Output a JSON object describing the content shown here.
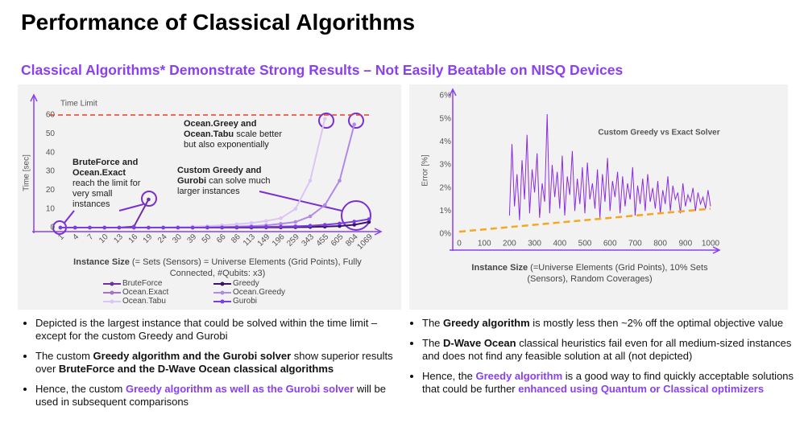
{
  "title": "Performance of Classical Algorithms",
  "subtitle": "Classical Algorithms* Demonstrate Strong Results – Not Easily Beatable on NISQ Devices",
  "chart_data": [
    {
      "type": "line",
      "ylabel": "Time [sec]",
      "xlabel": [
        {
          "text": "Instance Size",
          "style": "bold"
        },
        {
          "text": " (= Sets (Sensors) = Universe Elements (Grid Points), Fully Connected, #Qubits: x3)"
        }
      ],
      "categories": [
        1,
        4,
        7,
        10,
        13,
        16,
        19,
        24,
        30,
        39,
        50,
        66,
        86,
        113,
        149,
        196,
        259,
        343,
        455,
        605,
        804,
        1069
      ],
      "series": [
        {
          "name": "BruteForce",
          "color": "#6f2da8",
          "values": [
            0,
            0,
            0,
            0,
            0,
            0.5,
            15,
            null,
            null,
            null,
            null,
            null,
            null,
            null,
            null,
            null,
            null,
            null,
            null,
            null,
            null,
            null
          ]
        },
        {
          "name": "Greedy",
          "color": "#3b1466",
          "values": [
            0,
            0,
            0,
            0,
            0,
            0,
            0,
            0,
            0,
            0,
            0,
            0,
            0,
            0,
            0.1,
            0.1,
            0.2,
            0.3,
            0.5,
            0.8,
            1.5,
            3
          ]
        },
        {
          "name": "Ocean.Exact",
          "color": "#a46fcf",
          "values": [
            0,
            0,
            null,
            null,
            null,
            null,
            null,
            null,
            null,
            null,
            null,
            null,
            null,
            null,
            null,
            null,
            null,
            null,
            null,
            null,
            null,
            null
          ]
        },
        {
          "name": "Ocean.Greedy",
          "color": "#b18ae6",
          "values": [
            0,
            0,
            0,
            0,
            0,
            0,
            0,
            0,
            0,
            0.1,
            0.2,
            0.3,
            0.5,
            0.8,
            1.2,
            2,
            3,
            6,
            12,
            25,
            55,
            null
          ]
        },
        {
          "name": "Ocean.Tabu",
          "color": "#dcc4f5",
          "values": [
            0,
            0,
            0,
            0,
            0,
            0,
            0.1,
            0.2,
            0.3,
            0.5,
            0.8,
            1.2,
            1.8,
            2.5,
            3.5,
            5,
            10,
            25,
            58,
            null,
            null,
            null
          ]
        },
        {
          "name": "Gurobi",
          "color": "#7a3fe0",
          "values": [
            0,
            0,
            0,
            0,
            0,
            0,
            0,
            0,
            0,
            0,
            0.1,
            0.1,
            0.2,
            0.3,
            0.4,
            0.5,
            0.7,
            1,
            1.5,
            2.2,
            3.2,
            4.5
          ]
        }
      ],
      "ylim": [
        0,
        70
      ],
      "yticks": [
        0,
        10,
        20,
        30,
        40,
        50,
        60
      ],
      "limit": {
        "value": 60,
        "label": "Time Limit",
        "color": "#e8402a"
      },
      "annotations": [
        [
          {
            "text": "BruteForce and Ocean.Exact",
            "style": "bold"
          },
          {
            "text": " reach the limit for very small instances"
          }
        ],
        [
          {
            "text": "Ocean.Greey and Ocean.Tabu",
            "style": "bold"
          },
          {
            "text": " scale better but also exponentially"
          }
        ],
        [
          {
            "text": "Custom Greedy and Gurobi",
            "style": "bold"
          },
          {
            "text": " can solve much larger instances"
          }
        ]
      ],
      "legend": "bottom"
    },
    {
      "type": "line",
      "title": "Custom Greedy vs Exact Solver",
      "ylabel": "Error [%]",
      "xlabel": [
        {
          "text": "Instance Size",
          "style": "bold"
        },
        {
          "text": " (=Universe Elements (Grid Points), 10% Sets (Sensors), Random Coverages)"
        }
      ],
      "x": [
        200,
        210,
        220,
        230,
        240,
        250,
        260,
        270,
        280,
        290,
        300,
        310,
        320,
        330,
        340,
        350,
        360,
        370,
        380,
        390,
        400,
        410,
        420,
        430,
        440,
        450,
        460,
        470,
        480,
        490,
        500,
        510,
        520,
        530,
        540,
        550,
        560,
        570,
        580,
        590,
        600,
        610,
        620,
        630,
        640,
        650,
        660,
        670,
        680,
        690,
        700,
        710,
        720,
        730,
        740,
        750,
        760,
        770,
        780,
        790,
        800,
        810,
        820,
        830,
        840,
        850,
        860,
        870,
        880,
        890,
        900,
        910,
        920,
        930,
        940,
        950,
        960,
        970,
        980,
        990,
        1000
      ],
      "series": [
        {
          "color": "#8a2be2",
          "values": [
            0.8,
            3.9,
            1.2,
            2.6,
            0.6,
            3.2,
            1.5,
            4.3,
            0.9,
            2.8,
            1.8,
            3.5,
            0.7,
            2.2,
            1.4,
            5.2,
            0.9,
            3.0,
            1.6,
            2.7,
            1.1,
            3.4,
            0.8,
            2.5,
            1.7,
            3.6,
            1.0,
            2.4,
            1.3,
            2.9,
            0.9,
            3.1,
            1.5,
            2.2,
            1.1,
            2.8,
            0.7,
            2.6,
            1.4,
            3.3,
            1.0,
            2.3,
            1.6,
            2.7,
            0.9,
            2.5,
            1.2,
            2.2,
            1.5,
            2.9,
            0.8,
            2.1,
            1.3,
            2.4,
            1.0,
            2.6,
            1.4,
            2.0,
            1.1,
            2.3,
            0.9,
            1.9,
            1.3,
            2.5,
            1.0,
            2.1,
            1.5,
            1.8,
            0.9,
            2.2,
            1.2,
            1.7,
            1.4,
            2.0,
            1.0,
            1.8,
            1.3,
            1.6,
            1.1,
            1.9,
            1.2
          ]
        },
        {
          "color": "#f5a623",
          "dashed": true,
          "x": [
            0,
            1000
          ],
          "values": [
            0.1,
            1.1
          ]
        }
      ],
      "xlim": [
        0,
        1000
      ],
      "xticks": [
        0,
        100,
        200,
        300,
        400,
        500,
        600,
        700,
        800,
        900,
        1000
      ],
      "ylim": [
        0,
        6
      ],
      "yticks": [
        {
          "value": 0,
          "label": "0%"
        },
        {
          "value": 1,
          "label": "1%"
        },
        {
          "value": 2,
          "label": "2%"
        },
        {
          "value": 3,
          "label": "3%"
        },
        {
          "value": 4,
          "label": "4%"
        },
        {
          "value": 5,
          "label": "5%"
        },
        {
          "value": 6,
          "label": "6%"
        }
      ]
    }
  ],
  "bullets_left": [
    [
      {
        "text": "Depicted is the largest instance that could be solved within the time limit – except for the custom Greedy and Gurobi"
      }
    ],
    [
      {
        "text": "The custom "
      },
      {
        "text": "Greedy algorithm and the Gurobi solver",
        "style": "bold"
      },
      {
        "text": " show superior results over "
      },
      {
        "text": "BruteForce and the D-Wave Ocean classical algorithms",
        "style": "bold"
      }
    ],
    [
      {
        "text": "Hence, the custom "
      },
      {
        "text": "Greedy algorithm as well as the Gurobi solver",
        "style": "accent"
      },
      {
        "text": " will be used in subsequent comparisons"
      }
    ]
  ],
  "bullets_right": [
    [
      {
        "text": "The "
      },
      {
        "text": "Greedy algorithm",
        "style": "bold"
      },
      {
        "text": " is mostly less then ~2% off the optimal objective value"
      }
    ],
    [
      {
        "text": "The "
      },
      {
        "text": "D-Wave Ocean",
        "style": "bold"
      },
      {
        "text": " classical heuristics fail even for all medium-sized instances and does not find any feasible solution at all (not depicted)"
      }
    ],
    [
      {
        "text": "Hence, the "
      },
      {
        "text": "Greedy algorithm",
        "style": "accent"
      },
      {
        "text": " is a good way to find quickly acceptable solutions that could be further "
      },
      {
        "text": "enhanced using Quantum or Classical optimizers",
        "style": "accent"
      }
    ]
  ]
}
